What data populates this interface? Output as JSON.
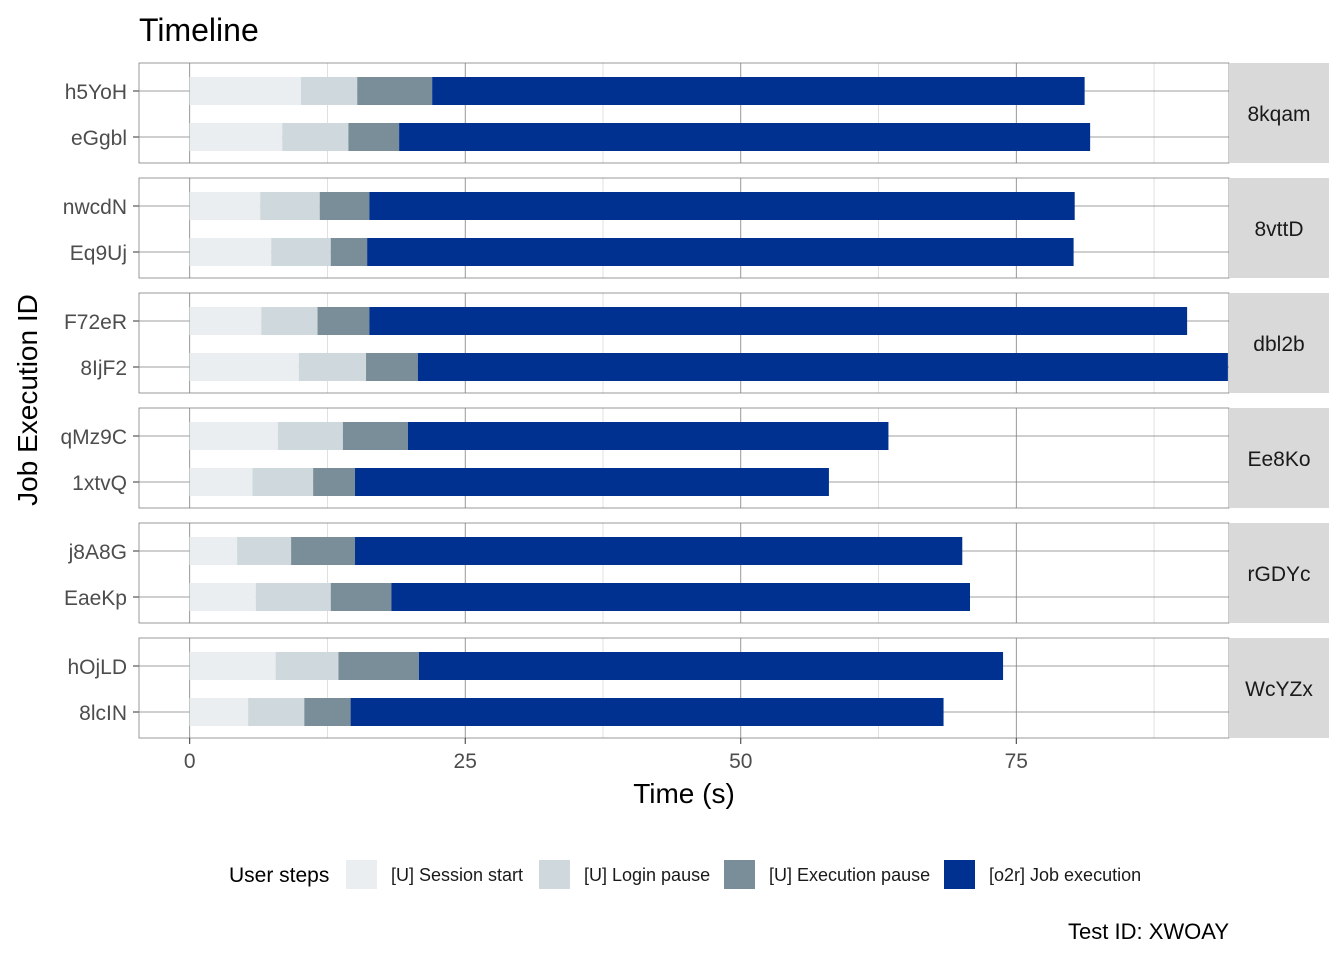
{
  "chart_data": {
    "type": "bar",
    "orientation": "horizontal",
    "stacked": true,
    "title": "Timeline",
    "xlabel": "Time (s)",
    "ylabel": "Job Execution ID",
    "xlim": [
      -4.6,
      94.3
    ],
    "xticks": [
      0,
      25,
      50,
      75
    ],
    "grid": true,
    "legend": {
      "title": "User steps",
      "position": "bottom",
      "entries": [
        {
          "label": "[U] Session start",
          "color": "#eaeef1"
        },
        {
          "label": "[U] Login pause",
          "color": "#cfd8dc"
        },
        {
          "label": "[U] Execution pause",
          "color": "#7a8e99"
        },
        {
          "label": "[o2r] Job execution",
          "color": "#003191"
        }
      ]
    },
    "facets": [
      {
        "label": "8kqam",
        "jobs": [
          {
            "id": "h5YoH",
            "values": [
              10.1,
              5.1,
              6.8,
              59.2
            ]
          },
          {
            "id": "eGgbl",
            "values": [
              8.4,
              6.0,
              4.6,
              62.7
            ]
          }
        ]
      },
      {
        "label": "8vttD",
        "jobs": [
          {
            "id": "nwcdN",
            "values": [
              6.4,
              5.4,
              4.5,
              64.0
            ]
          },
          {
            "id": "Eq9Uj",
            "values": [
              7.4,
              5.4,
              3.3,
              64.1
            ]
          }
        ]
      },
      {
        "label": "dbl2b",
        "jobs": [
          {
            "id": "F72eR",
            "values": [
              6.5,
              5.1,
              4.7,
              74.2
            ]
          },
          {
            "id": "8IjF2",
            "values": [
              9.9,
              6.1,
              4.7,
              73.5
            ]
          }
        ]
      },
      {
        "label": "Ee8Ko",
        "jobs": [
          {
            "id": "qMz9C",
            "values": [
              8.0,
              5.9,
              5.9,
              43.6
            ]
          },
          {
            "id": "1xtvQ",
            "values": [
              5.7,
              5.5,
              3.8,
              43.0
            ]
          }
        ]
      },
      {
        "label": "rGDYc",
        "jobs": [
          {
            "id": "j8A8G",
            "values": [
              4.3,
              4.9,
              5.8,
              55.1
            ]
          },
          {
            "id": "EaeKp",
            "values": [
              6.0,
              6.8,
              5.5,
              52.5
            ]
          }
        ]
      },
      {
        "label": "WcYZx",
        "jobs": [
          {
            "id": "hOjLD",
            "values": [
              7.8,
              5.7,
              7.3,
              53.0
            ]
          },
          {
            "id": "8lcIN",
            "values": [
              5.3,
              5.1,
              4.2,
              53.8
            ]
          }
        ]
      }
    ],
    "caption": "Test ID: XWOAY"
  }
}
